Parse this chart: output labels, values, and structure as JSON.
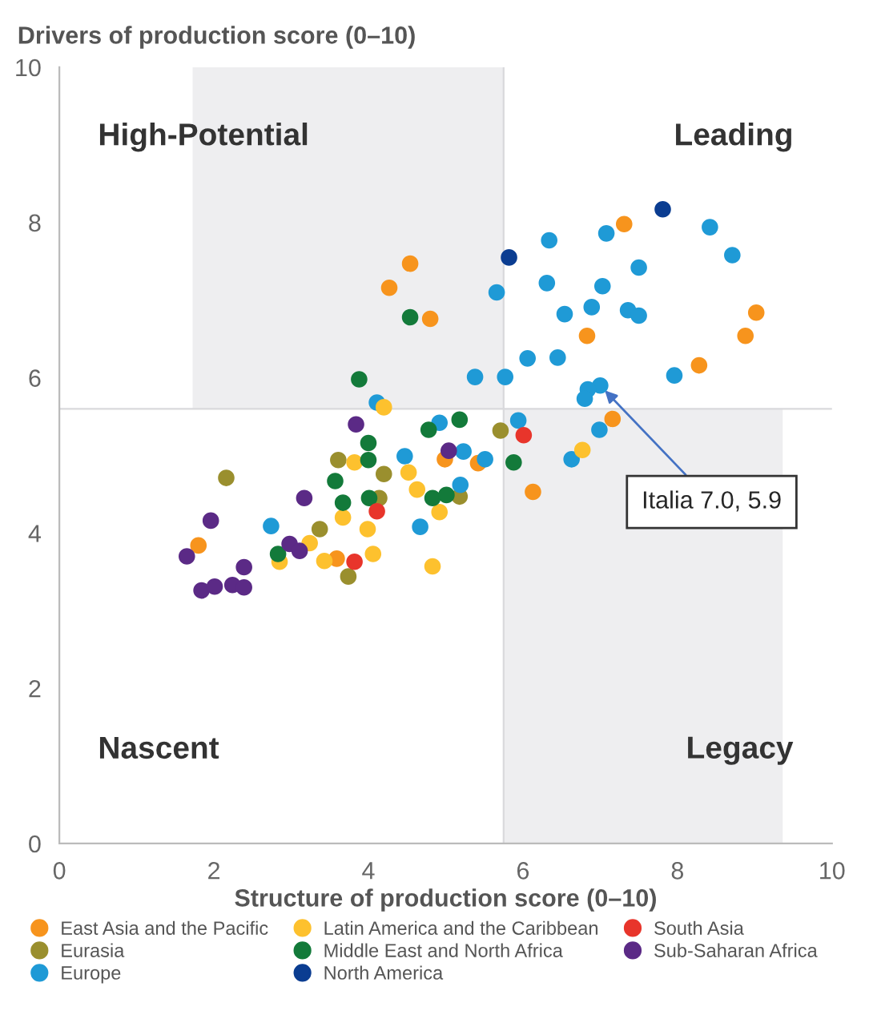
{
  "chart_data": {
    "type": "scatter",
    "xlabel": "Structure of production score (0–10)",
    "ylabel": "Drivers of production score (0–10)",
    "xlim": [
      0,
      10
    ],
    "ylim": [
      0,
      10
    ],
    "xticks": [
      0,
      2,
      4,
      6,
      8,
      10
    ],
    "yticks": [
      0,
      2,
      4,
      6,
      8,
      10
    ],
    "grid": false,
    "legend": "bottom",
    "marker": "circle",
    "ref_lines": [
      {
        "axis": "x",
        "value": 5.75,
        "color": "#d9d9dc"
      },
      {
        "axis": "y",
        "value": 5.6,
        "color": "#d9d9dc"
      }
    ],
    "annotations": [
      "High-Potential",
      "Leading",
      "Nascent",
      "Legacy",
      {
        "text": "Italia 7.0, 5.9",
        "x": 7.0,
        "y": 5.9
      }
    ],
    "series": [
      {
        "name": "East Asia and the Pacific",
        "color": "#f7941d",
        "x": [
          7.31,
          4.54,
          4.27,
          9.02,
          4.8,
          6.83,
          8.88,
          8.28,
          7.16,
          4.99,
          5.42,
          6.13,
          3.59,
          1.8
        ],
        "values": [
          7.98,
          7.47,
          7.16,
          6.84,
          6.76,
          6.54,
          6.54,
          6.16,
          5.47,
          4.95,
          4.9,
          4.53,
          3.67,
          3.84
        ]
      },
      {
        "name": "Eurasia",
        "color": "#9a8f2e",
        "x": [
          5.71,
          5.18,
          3.61,
          4.2,
          4.14,
          3.74,
          3.37,
          2.16
        ],
        "values": [
          5.32,
          4.47,
          4.94,
          4.76,
          4.45,
          3.44,
          4.05,
          4.71
        ]
      },
      {
        "name": "Europe",
        "color": "#1f9ad6",
        "x": [
          7.08,
          6.34,
          8.42,
          8.71,
          7.5,
          6.31,
          7.03,
          5.66,
          6.89,
          7.36,
          7.5,
          6.54,
          6.06,
          6.45,
          7.96,
          5.38,
          5.77,
          7.0,
          6.84,
          6.8,
          4.11,
          6.99,
          4.92,
          5.94,
          5.23,
          5.51,
          6.63,
          4.47,
          5.19,
          4.67,
          2.74
        ],
        "values": [
          7.86,
          7.77,
          7.94,
          7.58,
          7.42,
          7.22,
          7.18,
          7.1,
          6.91,
          6.87,
          6.8,
          6.82,
          6.25,
          6.26,
          6.03,
          6.01,
          6.01,
          5.9,
          5.85,
          5.73,
          5.68,
          5.33,
          5.42,
          5.45,
          5.05,
          4.95,
          4.95,
          4.99,
          4.62,
          4.08,
          4.09
        ]
      },
      {
        "name": "Latin America and the Caribbean",
        "color": "#fdc12e",
        "x": [
          4.2,
          6.77,
          4.52,
          4.63,
          4.92,
          4.83,
          3.82,
          3.67,
          3.99,
          4.06,
          3.43,
          3.24,
          2.85
        ],
        "values": [
          5.62,
          5.07,
          4.78,
          4.56,
          4.27,
          3.57,
          4.91,
          4.2,
          4.05,
          3.73,
          3.64,
          3.87,
          3.63
        ]
      },
      {
        "name": "Middle East and North Africa",
        "color": "#137a3a",
        "x": [
          4.54,
          3.88,
          4.78,
          5.18,
          5.88,
          4.83,
          5.01,
          4.0,
          4.0,
          3.57,
          3.67,
          4.01,
          2.83
        ],
        "values": [
          6.78,
          5.98,
          5.33,
          5.46,
          4.91,
          4.45,
          4.49,
          5.16,
          4.94,
          4.67,
          4.39,
          4.45,
          3.73
        ]
      },
      {
        "name": "North America",
        "color": "#0b3d91",
        "x": [
          7.81,
          5.82
        ],
        "values": [
          8.17,
          7.55
        ]
      },
      {
        "name": "South Asia",
        "color": "#e8352b",
        "x": [
          6.01,
          4.11,
          3.82
        ],
        "values": [
          5.26,
          4.28,
          3.63
        ]
      },
      {
        "name": "Sub-Saharan Africa",
        "color": "#5b2a86",
        "x": [
          3.84,
          5.04,
          3.17,
          2.98,
          3.11,
          1.96,
          1.65,
          2.39,
          1.84,
          2.01,
          2.24,
          2.39
        ],
        "values": [
          5.4,
          5.06,
          4.45,
          3.86,
          3.77,
          4.16,
          3.7,
          3.56,
          3.26,
          3.31,
          3.33,
          3.3
        ]
      }
    ]
  }
}
